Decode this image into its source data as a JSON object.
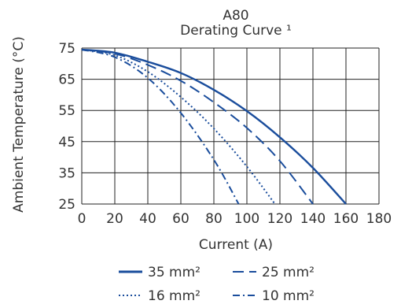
{
  "chart_data": {
    "type": "line",
    "title": "A80",
    "subtitle": "Derating Curve ¹",
    "xlabel": "Current (A)",
    "ylabel": "Ambient Temperature (°C)",
    "xlim": [
      0,
      180
    ],
    "ylim": [
      25,
      75
    ],
    "x_ticks": [
      "0",
      "20",
      "40",
      "60",
      "80",
      "100",
      "120",
      "140",
      "160",
      "180"
    ],
    "y_ticks": [
      "75",
      "65",
      "55",
      "45",
      "35",
      "25"
    ],
    "grid": true,
    "legend_position": "bottom",
    "series": [
      {
        "name": "35 mm²",
        "style": "solid",
        "color": "#1a4d9c",
        "points": [
          [
            0,
            74.5
          ],
          [
            20,
            73.5
          ],
          [
            40,
            70.6
          ],
          [
            60,
            67.0
          ],
          [
            80,
            61.6
          ],
          [
            100,
            54.8
          ],
          [
            120,
            46.4
          ],
          [
            140,
            36.6
          ],
          [
            160,
            25.0
          ]
        ]
      },
      {
        "name": "25 mm²",
        "style": "dashed",
        "color": "#1a4d9c",
        "points": [
          [
            0,
            74.5
          ],
          [
            20,
            73.2
          ],
          [
            40,
            69.6
          ],
          [
            60,
            64.5
          ],
          [
            80,
            57.6
          ],
          [
            100,
            49.4
          ],
          [
            120,
            38.8
          ],
          [
            140,
            25.0
          ]
        ]
      },
      {
        "name": "16 mm²",
        "style": "dotted",
        "color": "#1a4d9c",
        "points": [
          [
            0,
            74.5
          ],
          [
            20,
            72.7
          ],
          [
            40,
            67.4
          ],
          [
            60,
            59.3
          ],
          [
            80,
            49.2
          ],
          [
            100,
            37.0
          ],
          [
            117,
            25.0
          ]
        ]
      },
      {
        "name": "10 mm²",
        "style": "dashdot",
        "color": "#1a4d9c",
        "points": [
          [
            0,
            74.5
          ],
          [
            20,
            72.1
          ],
          [
            40,
            65.4
          ],
          [
            60,
            54.2
          ],
          [
            80,
            39.2
          ],
          [
            95,
            25.0
          ]
        ]
      }
    ]
  }
}
